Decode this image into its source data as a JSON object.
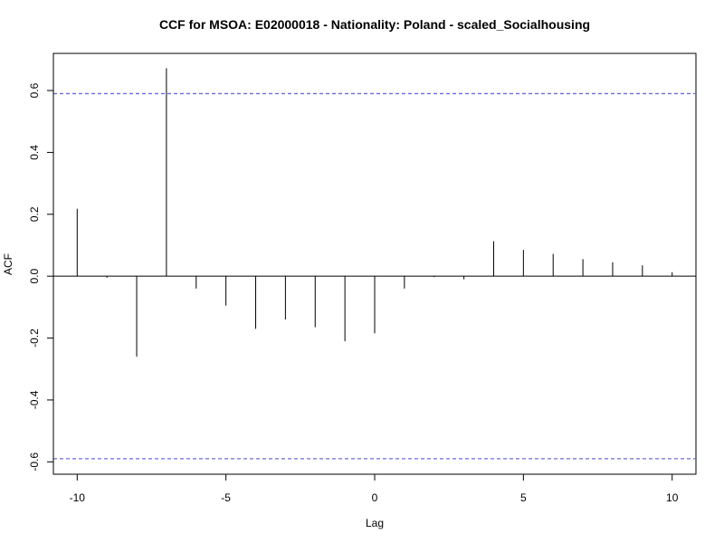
{
  "chart_data": {
    "type": "bar",
    "title": "CCF for MSOA: E02000018 - Nationality: Poland - scaled_Socialhousing",
    "xlabel": "Lag",
    "ylabel": "ACF",
    "xlim": [
      -10.8,
      10.8
    ],
    "ylim": [
      -0.64,
      0.72
    ],
    "x_ticks": [
      -10,
      -5,
      0,
      5,
      10
    ],
    "x_tick_labels": [
      "-10",
      "-5",
      "0",
      "5",
      "10"
    ],
    "y_ticks": [
      -0.6,
      -0.4,
      -0.2,
      0.0,
      0.2,
      0.4,
      0.6
    ],
    "y_tick_labels": [
      "-0.6",
      "-0.4",
      "-0.2",
      "0.0",
      "0.2",
      "0.4",
      "0.6"
    ],
    "confidence_bounds": [
      0.59,
      -0.59
    ],
    "confidence_color": "#6b6bdf",
    "bar_color": "#000000",
    "grid": false,
    "legend": false,
    "lags": [
      -10,
      -9,
      -8,
      -7,
      -6,
      -5,
      -4,
      -3,
      -2,
      -1,
      0,
      1,
      2,
      3,
      4,
      5,
      6,
      7,
      8,
      9,
      10
    ],
    "values": [
      0.218,
      -0.005,
      -0.26,
      0.672,
      -0.04,
      -0.095,
      -0.17,
      -0.14,
      -0.165,
      -0.21,
      -0.185,
      -0.04,
      -0.003,
      -0.01,
      0.113,
      0.085,
      0.072,
      0.055,
      0.045,
      0.035,
      0.013
    ]
  }
}
